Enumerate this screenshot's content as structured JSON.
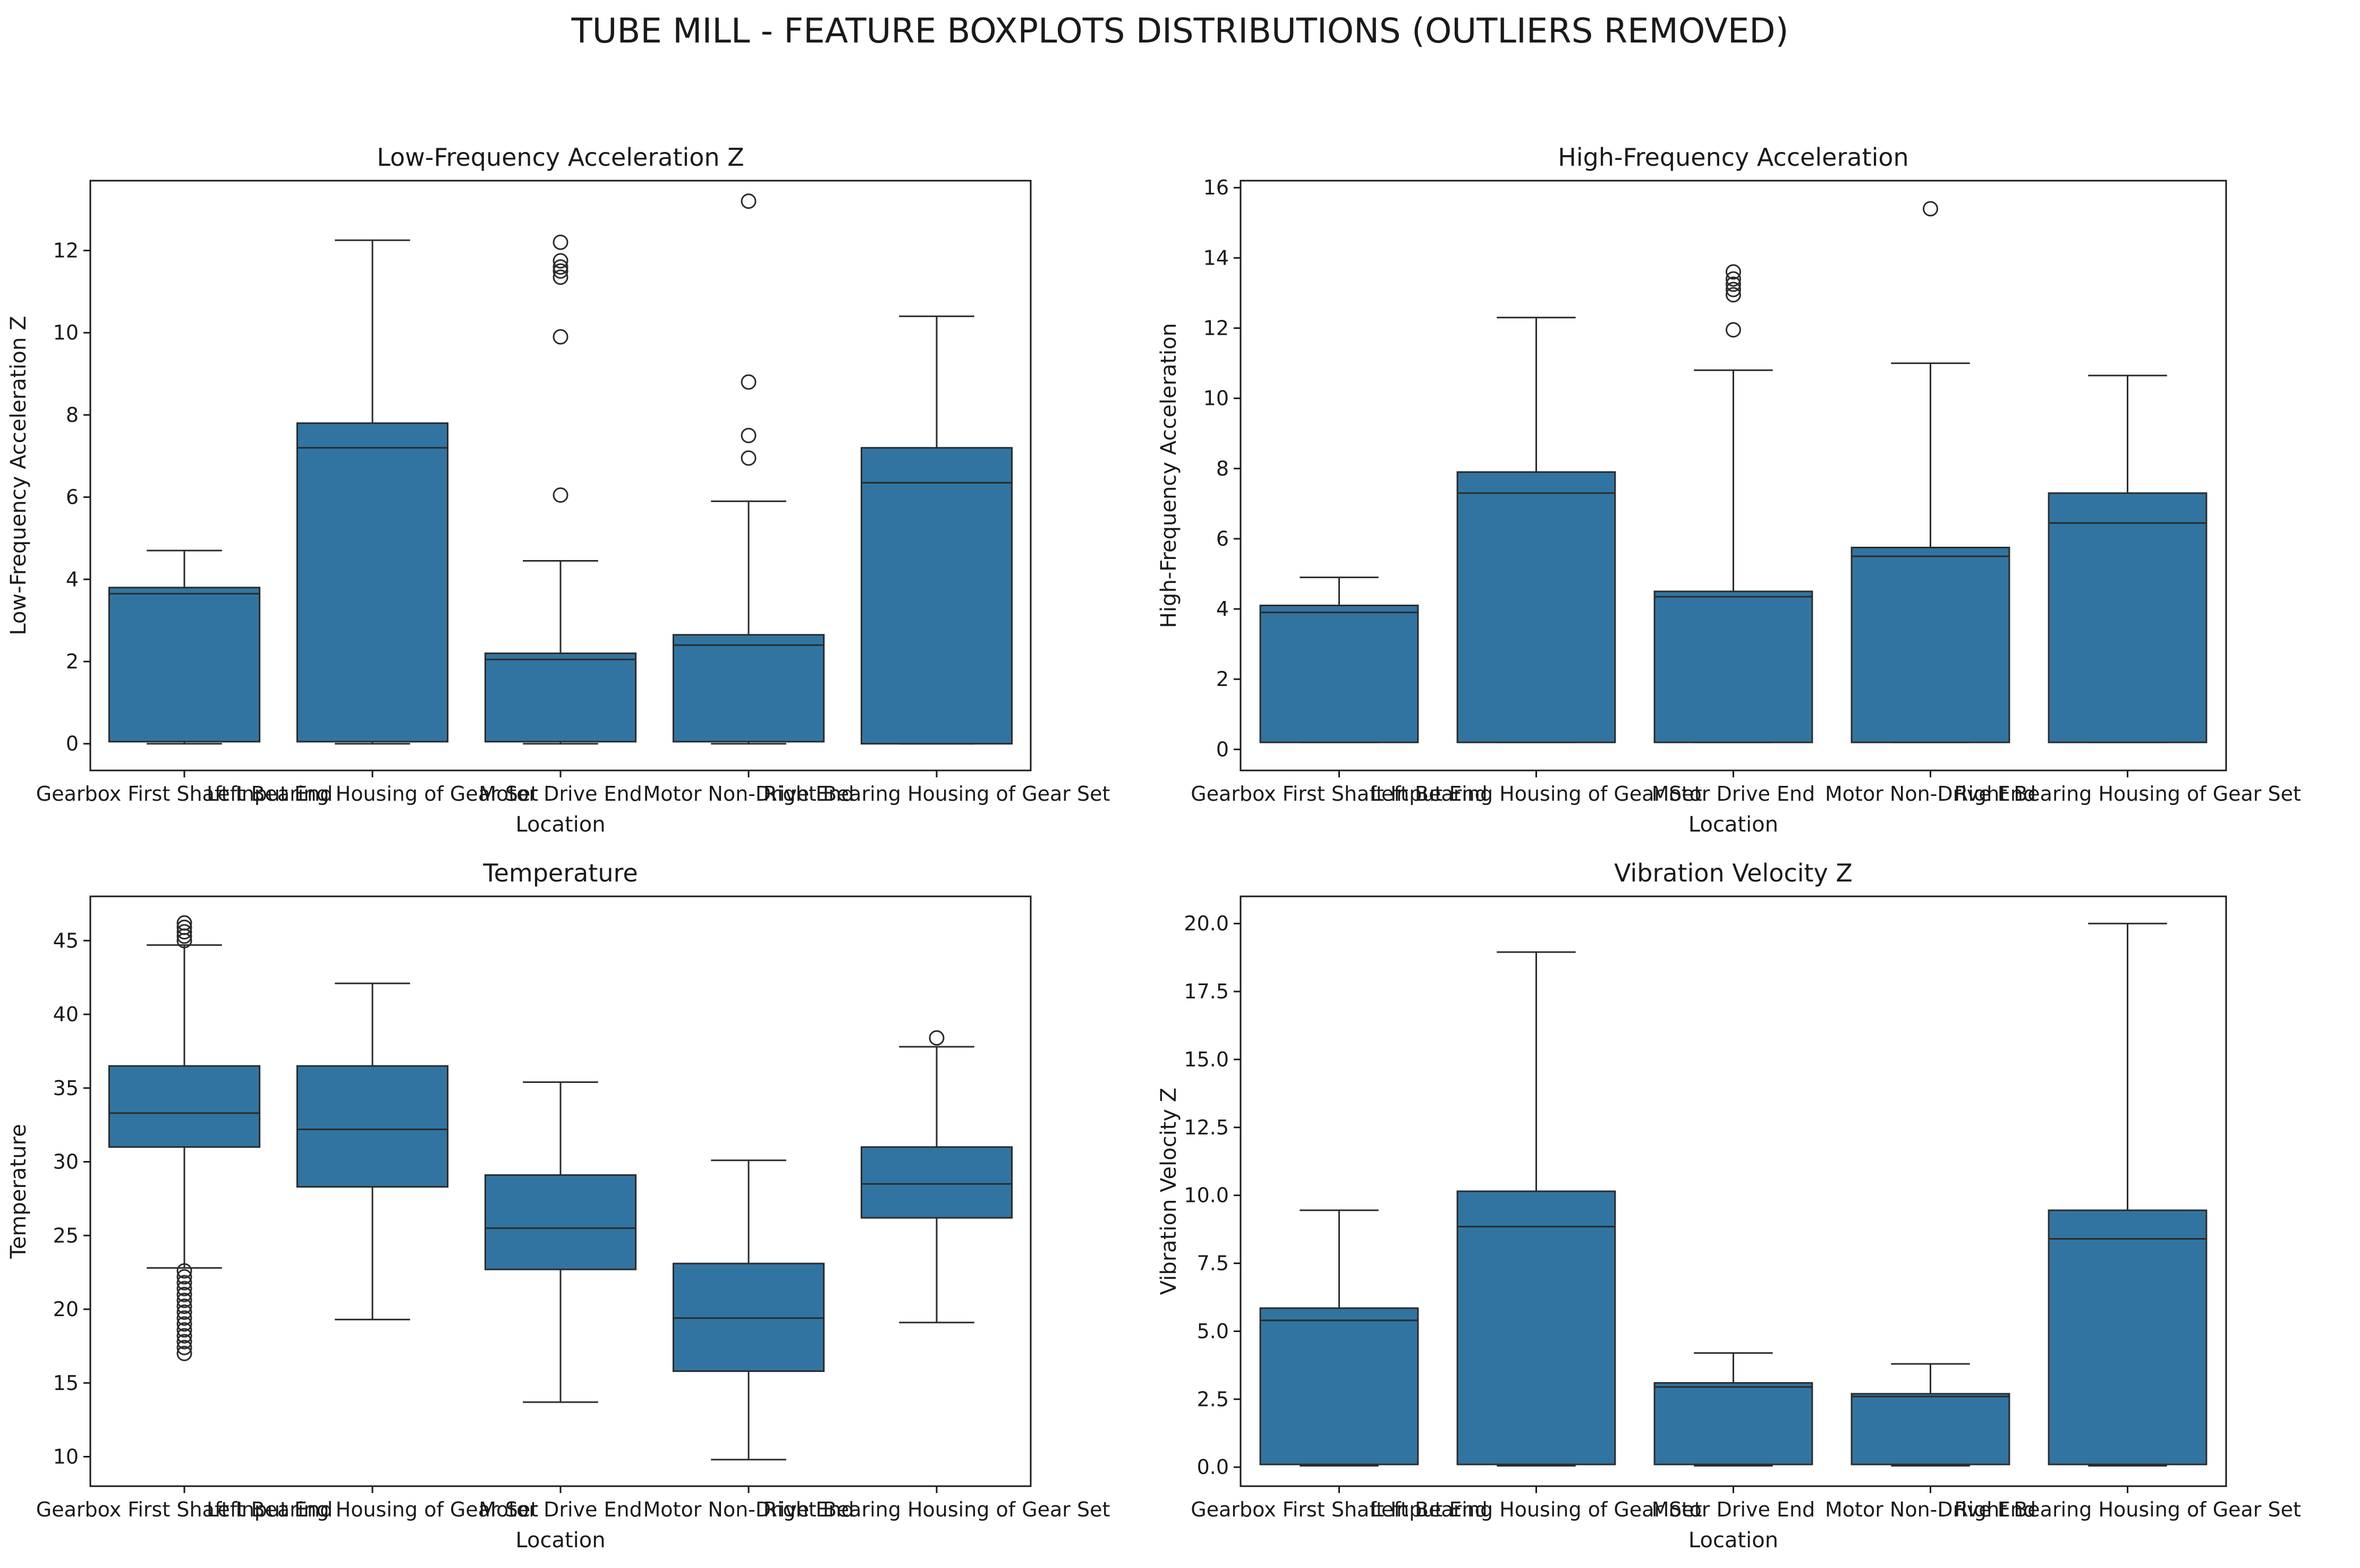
{
  "suptitle": "TUBE MILL - FEATURE BOXPLOTS DISTRIBUTIONS (OUTLIERS REMOVED)",
  "colors": {
    "box": "#3274a1",
    "line": "#2b2b2b",
    "axes": "#1a1a1a"
  },
  "chart_data": [
    {
      "type": "boxplot",
      "title": "Low-Frequency Acceleration Z",
      "xlabel": "Location",
      "ylabel": "Low-Frequency Acceleration Z",
      "ylim": [
        -0.65,
        13.7
      ],
      "yticks": [
        0,
        2,
        4,
        6,
        8,
        10,
        12
      ],
      "tick_decimals": 0,
      "categories": [
        "Gearbox First Shaft Input End",
        "Left Bearing Housing of Gear Set",
        "Motor Drive End",
        "Motor Non-Drive End",
        "Right Bearing Housing of Gear Set"
      ],
      "boxes": [
        {
          "whislo": 0.0,
          "q1": 0.05,
          "med": 3.65,
          "q3": 3.8,
          "whishi": 4.7,
          "fliers": []
        },
        {
          "whislo": 0.0,
          "q1": 0.05,
          "med": 7.2,
          "q3": 7.8,
          "whishi": 12.25,
          "fliers": []
        },
        {
          "whislo": 0.0,
          "q1": 0.05,
          "med": 2.05,
          "q3": 2.2,
          "whishi": 4.45,
          "fliers": [
            6.05,
            9.9,
            11.35,
            11.5,
            11.6,
            11.75,
            12.2
          ]
        },
        {
          "whislo": 0.0,
          "q1": 0.05,
          "med": 2.4,
          "q3": 2.65,
          "whishi": 5.9,
          "fliers": [
            6.95,
            7.5,
            8.8,
            13.2
          ]
        },
        {
          "whislo": 0.0,
          "q1": 0.0,
          "med": 6.35,
          "q3": 7.2,
          "whishi": 10.4,
          "fliers": []
        }
      ]
    },
    {
      "type": "boxplot",
      "title": "High-Frequency Acceleration",
      "xlabel": "Location",
      "ylabel": "High-Frequency Acceleration",
      "ylim": [
        -0.6,
        16.2
      ],
      "yticks": [
        0,
        2,
        4,
        6,
        8,
        10,
        12,
        14,
        16
      ],
      "tick_decimals": 0,
      "categories": [
        "Gearbox First Shaft Input End",
        "Left Bearing Housing of Gear Set",
        "Motor Drive End",
        "Motor Non-Drive End",
        "Right Bearing Housing of Gear Set"
      ],
      "boxes": [
        {
          "whislo": 0.2,
          "q1": 0.2,
          "med": 3.9,
          "q3": 4.1,
          "whishi": 4.9,
          "fliers": []
        },
        {
          "whislo": 0.2,
          "q1": 0.2,
          "med": 7.3,
          "q3": 7.9,
          "whishi": 12.3,
          "fliers": []
        },
        {
          "whislo": 0.2,
          "q1": 0.2,
          "med": 4.35,
          "q3": 4.5,
          "whishi": 10.8,
          "fliers": [
            11.95,
            12.95,
            13.1,
            13.25,
            13.4,
            13.6
          ]
        },
        {
          "whislo": 0.2,
          "q1": 0.2,
          "med": 5.5,
          "q3": 5.75,
          "whishi": 11.0,
          "fliers": [
            15.4
          ]
        },
        {
          "whislo": 0.2,
          "q1": 0.2,
          "med": 6.45,
          "q3": 7.3,
          "whishi": 10.65,
          "fliers": []
        }
      ]
    },
    {
      "type": "boxplot",
      "title": "Temperature",
      "xlabel": "Location",
      "ylabel": "Temperature",
      "ylim": [
        8.0,
        48.0
      ],
      "yticks": [
        10,
        15,
        20,
        25,
        30,
        35,
        40,
        45
      ],
      "tick_decimals": 0,
      "categories": [
        "Gearbox First Shaft Input End",
        "Left Bearing Housing of Gear Set",
        "Motor Drive End",
        "Motor Non-Drive End",
        "Right Bearing Housing of Gear Set"
      ],
      "boxes": [
        {
          "whislo": 22.8,
          "q1": 31.0,
          "med": 33.3,
          "q3": 36.5,
          "whishi": 44.7,
          "fliers": [
            17.0,
            17.4,
            17.8,
            18.2,
            18.6,
            19.0,
            19.4,
            19.8,
            20.2,
            20.6,
            21.0,
            21.4,
            21.8,
            22.2,
            22.6,
            45.0,
            45.3,
            45.6,
            45.9,
            46.2
          ]
        },
        {
          "whislo": 19.3,
          "q1": 28.3,
          "med": 32.2,
          "q3": 36.5,
          "whishi": 42.1,
          "fliers": []
        },
        {
          "whislo": 13.7,
          "q1": 22.7,
          "med": 25.5,
          "q3": 29.1,
          "whishi": 35.4,
          "fliers": []
        },
        {
          "whislo": 9.8,
          "q1": 15.8,
          "med": 19.4,
          "q3": 23.1,
          "whishi": 30.1,
          "fliers": []
        },
        {
          "whislo": 19.1,
          "q1": 26.2,
          "med": 28.5,
          "q3": 31.0,
          "whishi": 37.8,
          "fliers": [
            38.4
          ]
        }
      ]
    },
    {
      "type": "boxplot",
      "title": "Vibration Velocity Z",
      "xlabel": "Location",
      "ylabel": "Vibration Velocity Z",
      "ylim": [
        -0.7,
        21.0
      ],
      "yticks": [
        0.0,
        2.5,
        5.0,
        7.5,
        10.0,
        12.5,
        15.0,
        17.5,
        20.0
      ],
      "tick_decimals": 1,
      "categories": [
        "Gearbox First Shaft Input End",
        "Left Bearing Housing of Gear Set",
        "Motor Drive End",
        "Motor Non-Drive End",
        "Right Bearing Housing of Gear Set"
      ],
      "boxes": [
        {
          "whislo": 0.05,
          "q1": 0.1,
          "med": 5.4,
          "q3": 5.85,
          "whishi": 9.45,
          "fliers": []
        },
        {
          "whislo": 0.05,
          "q1": 0.1,
          "med": 8.85,
          "q3": 10.15,
          "whishi": 18.95,
          "fliers": []
        },
        {
          "whislo": 0.05,
          "q1": 0.1,
          "med": 2.95,
          "q3": 3.1,
          "whishi": 4.2,
          "fliers": []
        },
        {
          "whislo": 0.05,
          "q1": 0.1,
          "med": 2.6,
          "q3": 2.7,
          "whishi": 3.8,
          "fliers": []
        },
        {
          "whislo": 0.05,
          "q1": 0.1,
          "med": 8.4,
          "q3": 9.45,
          "whishi": 20.0,
          "fliers": []
        }
      ]
    }
  ]
}
